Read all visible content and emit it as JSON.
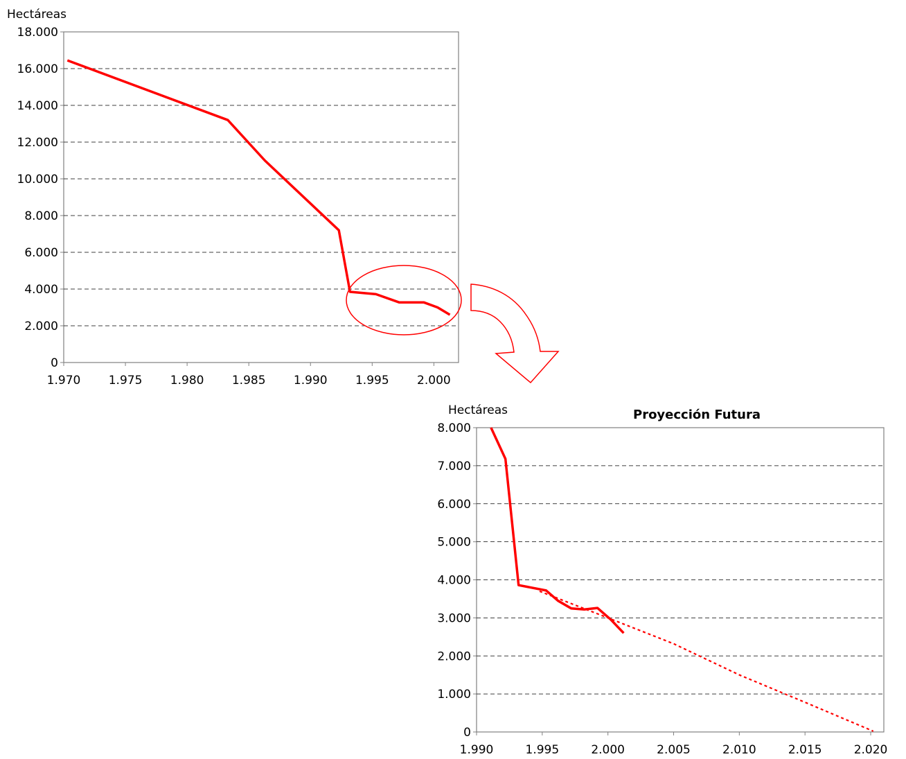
{
  "chart_data": [
    {
      "type": "line",
      "title": "",
      "ylabel": "Hectáreas",
      "xlabel": "",
      "xlim": [
        1970,
        2002
      ],
      "ylim": [
        0,
        18000
      ],
      "grid": "horizontal-dashed",
      "x_ticks": [
        "1.970",
        "1.975",
        "1.980",
        "1.985",
        "1.990",
        "1.995",
        "2.000"
      ],
      "y_ticks": [
        "0",
        "2.000",
        "4.000",
        "6.000",
        "8.000",
        "10.000",
        "12.000",
        "14.000",
        "16.000",
        "18.000"
      ],
      "series": [
        {
          "color": "#ff0000",
          "style": "solid",
          "points": [
            [
              1970.3,
              16450
            ],
            [
              1983.3,
              13200
            ],
            [
              1986.3,
              11000
            ],
            [
              1992.3,
              7200
            ],
            [
              1993.2,
              3850
            ],
            [
              1995.3,
              3720
            ],
            [
              1997.2,
              3270
            ],
            [
              1999.2,
              3270
            ],
            [
              2000.3,
              3000
            ],
            [
              2001.3,
              2600
            ]
          ]
        }
      ],
      "annotation": "zoom-ellipse"
    },
    {
      "type": "line",
      "title": "Proyección Futura",
      "ylabel": "Hectáreas",
      "xlabel": "",
      "xlim": [
        1990,
        2021
      ],
      "ylim": [
        0,
        8000
      ],
      "grid": "horizontal-dashed",
      "x_ticks": [
        "1.990",
        "1.995",
        "2.000",
        "2.005",
        "2.010",
        "2.015",
        "2.020"
      ],
      "y_ticks": [
        "0",
        "1.000",
        "2.000",
        "3.000",
        "4.000",
        "5.000",
        "6.000",
        "7.000",
        "8.000"
      ],
      "series": [
        {
          "color": "#ff0000",
          "style": "solid",
          "points": [
            [
              1991.1,
              8000
            ],
            [
              1992.2,
              7180
            ],
            [
              1993.2,
              3860
            ],
            [
              1995.3,
              3720
            ],
            [
              1996.2,
              3450
            ],
            [
              1997.2,
              3250
            ],
            [
              1998.2,
              3220
            ],
            [
              1999.2,
              3260
            ],
            [
              2000.2,
              2960
            ],
            [
              2001.2,
              2600
            ]
          ]
        },
        {
          "color": "#ff0000",
          "style": "dotted",
          "points": [
            [
              1994.8,
              3700
            ],
            [
              2000.0,
              3000
            ],
            [
              2005.0,
              2320
            ],
            [
              2010.0,
              1500
            ],
            [
              2015.0,
              780
            ],
            [
              2020.2,
              20
            ]
          ]
        }
      ]
    }
  ],
  "colors": {
    "line": "#ff0000",
    "axis": "#808080",
    "grid": "#000000"
  }
}
